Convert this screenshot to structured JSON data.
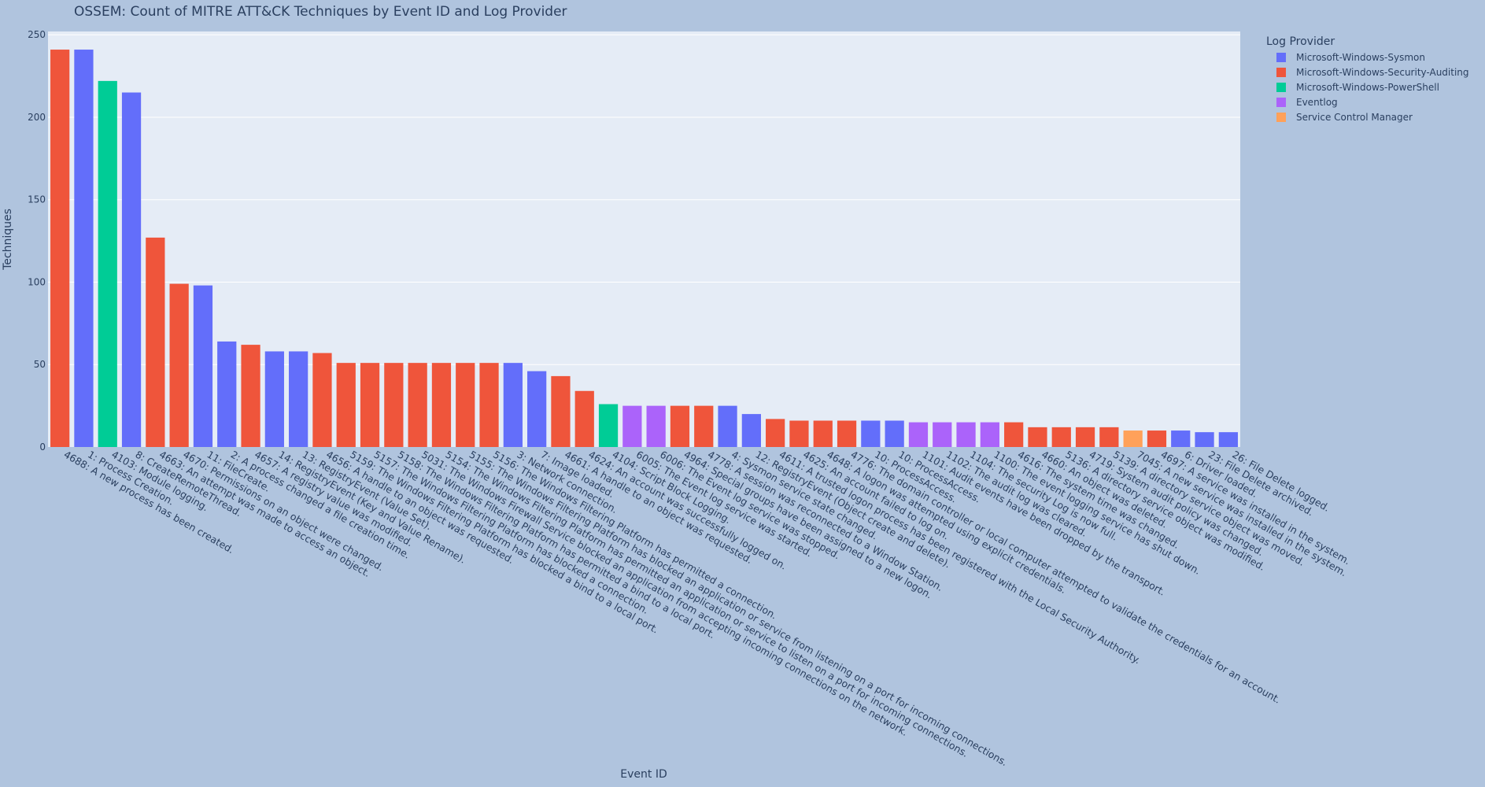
{
  "chart_data": {
    "type": "bar",
    "title": "OSSEM: Count of MITRE ATT&CK Techniques by Event ID and Log Provider",
    "xlabel": "Event ID",
    "ylabel": "Techniques",
    "ylim": [
      0,
      252
    ],
    "yticks": [
      0,
      50,
      100,
      150,
      200,
      250
    ],
    "grid": true,
    "legend_title": "Log Provider",
    "legend_position": "top-right outside",
    "colors": {
      "Microsoft-Windows-Sysmon": "#636efa",
      "Microsoft-Windows-Security-Auditing": "#ef553b",
      "Microsoft-Windows-PowerShell": "#00cc96",
      "Eventlog": "#ab63fa",
      "Service Control Manager": "#ffa15a"
    },
    "series_names": [
      "Microsoft-Windows-Sysmon",
      "Microsoft-Windows-Security-Auditing",
      "Microsoft-Windows-PowerShell",
      "Eventlog",
      "Service Control Manager"
    ],
    "bars": [
      {
        "category": "4688: A new process has been created.",
        "provider": "Microsoft-Windows-Security-Auditing",
        "value": 241
      },
      {
        "category": "1: Process Creation.",
        "provider": "Microsoft-Windows-Sysmon",
        "value": 241
      },
      {
        "category": "4103: Module logging.",
        "provider": "Microsoft-Windows-PowerShell",
        "value": 222
      },
      {
        "category": "8: CreateRemoteThread.",
        "provider": "Microsoft-Windows-Sysmon",
        "value": 215
      },
      {
        "category": "4663: An attempt was made to access an object.",
        "provider": "Microsoft-Windows-Security-Auditing",
        "value": 127
      },
      {
        "category": "4670: Permissions on an object were changed.",
        "provider": "Microsoft-Windows-Security-Auditing",
        "value": 99
      },
      {
        "category": "11: FileCreate.",
        "provider": "Microsoft-Windows-Sysmon",
        "value": 98
      },
      {
        "category": "2: A process changed a file creation time.",
        "provider": "Microsoft-Windows-Sysmon",
        "value": 64
      },
      {
        "category": "4657: A registry value was modified.",
        "provider": "Microsoft-Windows-Security-Auditing",
        "value": 62
      },
      {
        "category": "14: RegistryEvent (Key and Value Rename).",
        "provider": "Microsoft-Windows-Sysmon",
        "value": 58
      },
      {
        "category": "13: RegistryEvent (Value Set).",
        "provider": "Microsoft-Windows-Sysmon",
        "value": 58
      },
      {
        "category": "4656: A handle to an object was requested.",
        "provider": "Microsoft-Windows-Security-Auditing",
        "value": 57
      },
      {
        "category": "5159: The Windows Filtering Platform has blocked a bind to a local port.",
        "provider": "Microsoft-Windows-Security-Auditing",
        "value": 51
      },
      {
        "category": "5157: The Windows Filtering Platform has blocked a connection.",
        "provider": "Microsoft-Windows-Security-Auditing",
        "value": 51
      },
      {
        "category": "5158: The Windows Filtering Platform has permitted a bind to a local port.",
        "provider": "Microsoft-Windows-Security-Auditing",
        "value": 51
      },
      {
        "category": "5031: The Windows Firewall Service blocked an application from accepting incoming connections on the network.",
        "provider": "Microsoft-Windows-Security-Auditing",
        "value": 51
      },
      {
        "category": "5154: The Windows Filtering Platform has permitted an application or service to listen on a port for incoming connections.",
        "provider": "Microsoft-Windows-Security-Auditing",
        "value": 51
      },
      {
        "category": "5155: The Windows Filtering Platform has blocked an application or service from listening on a port for incoming connections.",
        "provider": "Microsoft-Windows-Security-Auditing",
        "value": 51
      },
      {
        "category": "5156: The Windows Filtering Platform has permitted a connection.",
        "provider": "Microsoft-Windows-Security-Auditing",
        "value": 51
      },
      {
        "category": "3: Network connection.",
        "provider": "Microsoft-Windows-Sysmon",
        "value": 51
      },
      {
        "category": "7: Image loaded.",
        "provider": "Microsoft-Windows-Sysmon",
        "value": 46
      },
      {
        "category": "4661: A handle to an object was requested.",
        "provider": "Microsoft-Windows-Security-Auditing",
        "value": 43
      },
      {
        "category": "4624: An account was successfully logged on.",
        "provider": "Microsoft-Windows-Security-Auditing",
        "value": 34
      },
      {
        "category": "4104: Script Block Logging.",
        "provider": "Microsoft-Windows-PowerShell",
        "value": 26
      },
      {
        "category": "6005: The Event log service was started.",
        "provider": "Eventlog",
        "value": 25
      },
      {
        "category": "6006: The Event log service was stopped.",
        "provider": "Eventlog",
        "value": 25
      },
      {
        "category": "4964: Special groups have been assigned to a new logon.",
        "provider": "Microsoft-Windows-Security-Auditing",
        "value": 25
      },
      {
        "category": "4778: A session was reconnected to a Window Station.",
        "provider": "Microsoft-Windows-Security-Auditing",
        "value": 25
      },
      {
        "category": "4: Sysmon service state changed.",
        "provider": "Microsoft-Windows-Sysmon",
        "value": 25
      },
      {
        "category": "12: RegistryEvent (Object create and delete).",
        "provider": "Microsoft-Windows-Sysmon",
        "value": 20
      },
      {
        "category": "4611: A trusted logon process has been registered with the Local Security Authority.",
        "provider": "Microsoft-Windows-Security-Auditing",
        "value": 17
      },
      {
        "category": "4625: An account failed to log on.",
        "provider": "Microsoft-Windows-Security-Auditing",
        "value": 16
      },
      {
        "category": "4648: A logon was attempted using explicit credentials.",
        "provider": "Microsoft-Windows-Security-Auditing",
        "value": 16
      },
      {
        "category": "4776: The domain controller or local computer attempted to validate the credentials for an account.",
        "provider": "Microsoft-Windows-Security-Auditing",
        "value": 16
      },
      {
        "category": "10: ProcessAccess.",
        "provider": "Microsoft-Windows-Sysmon",
        "value": 16
      },
      {
        "category": "10: ProcessAccess.",
        "provider": "Microsoft-Windows-Sysmon",
        "value": 16
      },
      {
        "category": "1101: Audit events have been dropped by the transport.",
        "provider": "Eventlog",
        "value": 15
      },
      {
        "category": "1102: The audit log was cleared.",
        "provider": "Eventlog",
        "value": 15
      },
      {
        "category": "1104: The security Log is now full.",
        "provider": "Eventlog",
        "value": 15
      },
      {
        "category": "1100: The event logging service has shut down.",
        "provider": "Eventlog",
        "value": 15
      },
      {
        "category": "4616: The system time was changed.",
        "provider": "Microsoft-Windows-Security-Auditing",
        "value": 15
      },
      {
        "category": "4660: An object was deleted.",
        "provider": "Microsoft-Windows-Security-Auditing",
        "value": 12
      },
      {
        "category": "5136: A directory service object was modified.",
        "provider": "Microsoft-Windows-Security-Auditing",
        "value": 12
      },
      {
        "category": "4719: System audit policy was changed.",
        "provider": "Microsoft-Windows-Security-Auditing",
        "value": 12
      },
      {
        "category": "5139: A directory service object was moved.",
        "provider": "Microsoft-Windows-Security-Auditing",
        "value": 12
      },
      {
        "category": "7045: A new service was installed in the system.",
        "provider": "Service Control Manager",
        "value": 10
      },
      {
        "category": "4697: A service was installed in the system.",
        "provider": "Microsoft-Windows-Security-Auditing",
        "value": 10
      },
      {
        "category": "6: Driver loaded.",
        "provider": "Microsoft-Windows-Sysmon",
        "value": 10
      },
      {
        "category": "23: File Delete archived.",
        "provider": "Microsoft-Windows-Sysmon",
        "value": 9
      },
      {
        "category": "26: File Delete logged.",
        "provider": "Microsoft-Windows-Sysmon",
        "value": 9
      }
    ]
  }
}
